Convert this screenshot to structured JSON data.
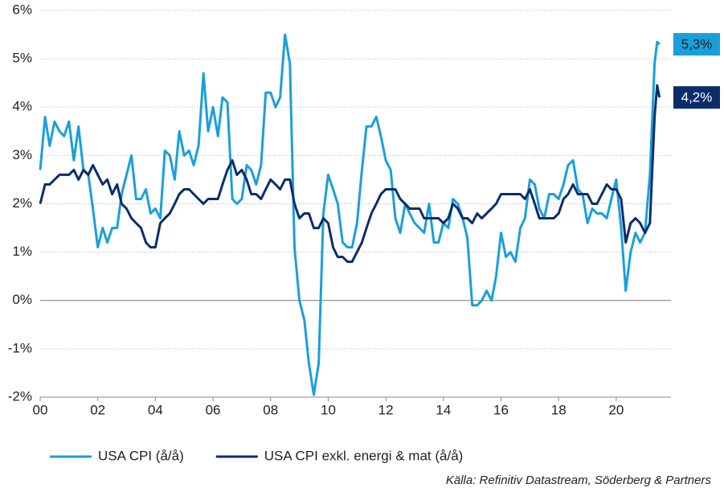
{
  "chart_data": {
    "type": "line",
    "x": [
      2000,
      2000.17,
      2000.33,
      2000.5,
      2000.67,
      2000.83,
      2001,
      2001.17,
      2001.33,
      2001.5,
      2001.67,
      2001.83,
      2002,
      2002.17,
      2002.33,
      2002.5,
      2002.67,
      2002.83,
      2003,
      2003.17,
      2003.33,
      2003.5,
      2003.67,
      2003.83,
      2004,
      2004.17,
      2004.33,
      2004.5,
      2004.67,
      2004.83,
      2005,
      2005.17,
      2005.33,
      2005.5,
      2005.67,
      2005.83,
      2006,
      2006.17,
      2006.33,
      2006.5,
      2006.67,
      2006.83,
      2007,
      2007.17,
      2007.33,
      2007.5,
      2007.67,
      2007.83,
      2008,
      2008.17,
      2008.33,
      2008.5,
      2008.67,
      2008.83,
      2009,
      2009.17,
      2009.33,
      2009.5,
      2009.67,
      2009.83,
      2010,
      2010.17,
      2010.33,
      2010.5,
      2010.67,
      2010.83,
      2011,
      2011.17,
      2011.33,
      2011.5,
      2011.67,
      2011.83,
      2012,
      2012.17,
      2012.33,
      2012.5,
      2012.67,
      2012.83,
      2013,
      2013.17,
      2013.33,
      2013.5,
      2013.67,
      2013.83,
      2014,
      2014.17,
      2014.33,
      2014.5,
      2014.67,
      2014.83,
      2015,
      2015.17,
      2015.33,
      2015.5,
      2015.67,
      2015.83,
      2016,
      2016.17,
      2016.33,
      2016.5,
      2016.67,
      2016.83,
      2017,
      2017.17,
      2017.33,
      2017.5,
      2017.67,
      2017.83,
      2018,
      2018.17,
      2018.33,
      2018.5,
      2018.67,
      2018.83,
      2019,
      2019.17,
      2019.33,
      2019.5,
      2019.67,
      2019.83,
      2020,
      2020.17,
      2020.33,
      2020.5,
      2020.67,
      2020.83,
      2021,
      2021.17,
      2021.33,
      2021.42,
      2021.5
    ],
    "series": [
      {
        "name": "USA CPI (å/å)",
        "color": "#1a9fdb",
        "end_label": "5,3%",
        "values": [
          2.7,
          3.8,
          3.2,
          3.7,
          3.5,
          3.4,
          3.7,
          2.9,
          3.6,
          2.7,
          2.6,
          1.9,
          1.1,
          1.5,
          1.2,
          1.5,
          1.5,
          2.2,
          2.6,
          3.0,
          2.1,
          2.1,
          2.3,
          1.8,
          1.9,
          1.7,
          3.1,
          3.0,
          2.5,
          3.5,
          3.0,
          3.1,
          2.8,
          3.2,
          4.7,
          3.5,
          4.0,
          3.4,
          4.2,
          4.1,
          2.1,
          2.0,
          2.1,
          2.8,
          2.7,
          2.4,
          2.8,
          4.3,
          4.3,
          4.0,
          4.2,
          5.5,
          4.9,
          1.1,
          0.0,
          -0.4,
          -1.3,
          -1.95,
          -1.3,
          1.8,
          2.6,
          2.3,
          2.0,
          1.2,
          1.1,
          1.1,
          1.6,
          2.7,
          3.6,
          3.6,
          3.8,
          3.4,
          2.9,
          2.7,
          1.7,
          1.4,
          2.0,
          1.8,
          1.6,
          1.5,
          1.4,
          2.0,
          1.2,
          1.2,
          1.6,
          1.5,
          2.1,
          2.0,
          1.7,
          1.3,
          -0.1,
          -0.1,
          0.0,
          0.2,
          0.0,
          0.5,
          1.4,
          0.9,
          1.0,
          0.8,
          1.5,
          1.7,
          2.5,
          2.4,
          1.9,
          1.7,
          2.2,
          2.2,
          2.1,
          2.4,
          2.8,
          2.9,
          2.3,
          2.2,
          1.6,
          1.9,
          1.8,
          1.8,
          1.7,
          2.1,
          2.5,
          1.5,
          0.2,
          1.0,
          1.4,
          1.2,
          1.4,
          2.6,
          4.9,
          5.35,
          5.3
        ]
      },
      {
        "name": "USA CPI exkl. energi & mat (å/å)",
        "color": "#0b2d6b",
        "end_label": "4,2%",
        "values": [
          2.0,
          2.4,
          2.4,
          2.5,
          2.6,
          2.6,
          2.6,
          2.7,
          2.5,
          2.7,
          2.6,
          2.8,
          2.6,
          2.4,
          2.5,
          2.2,
          2.4,
          2.0,
          1.9,
          1.7,
          1.6,
          1.5,
          1.2,
          1.1,
          1.1,
          1.6,
          1.7,
          1.8,
          2.0,
          2.2,
          2.3,
          2.3,
          2.2,
          2.1,
          2.0,
          2.1,
          2.1,
          2.1,
          2.4,
          2.7,
          2.9,
          2.6,
          2.7,
          2.5,
          2.2,
          2.2,
          2.1,
          2.3,
          2.5,
          2.4,
          2.3,
          2.5,
          2.5,
          2.0,
          1.7,
          1.8,
          1.8,
          1.5,
          1.5,
          1.7,
          1.6,
          1.1,
          0.9,
          0.9,
          0.8,
          0.8,
          1.0,
          1.2,
          1.5,
          1.8,
          2.0,
          2.2,
          2.3,
          2.3,
          2.3,
          2.1,
          2.0,
          1.9,
          1.9,
          1.9,
          1.7,
          1.7,
          1.7,
          1.7,
          1.6,
          1.7,
          2.0,
          1.9,
          1.7,
          1.7,
          1.6,
          1.8,
          1.7,
          1.8,
          1.9,
          2.0,
          2.2,
          2.2,
          2.2,
          2.2,
          2.2,
          2.1,
          2.3,
          2.0,
          1.7,
          1.7,
          1.7,
          1.7,
          1.8,
          2.1,
          2.2,
          2.4,
          2.2,
          2.2,
          2.2,
          2.0,
          2.0,
          2.2,
          2.4,
          2.3,
          2.3,
          2.1,
          1.2,
          1.6,
          1.7,
          1.6,
          1.4,
          1.6,
          3.8,
          4.45,
          4.2
        ]
      }
    ],
    "xlim": [
      2000,
      2021.9
    ],
    "xticks": [
      {
        "value": 2000,
        "label": "00"
      },
      {
        "value": 2002,
        "label": "02"
      },
      {
        "value": 2004,
        "label": "04"
      },
      {
        "value": 2006,
        "label": "06"
      },
      {
        "value": 2008,
        "label": "08"
      },
      {
        "value": 2010,
        "label": "10"
      },
      {
        "value": 2012,
        "label": "12"
      },
      {
        "value": 2014,
        "label": "14"
      },
      {
        "value": 2016,
        "label": "16"
      },
      {
        "value": 2018,
        "label": "18"
      },
      {
        "value": 2020,
        "label": "20"
      }
    ],
    "ylim": [
      -2,
      6
    ],
    "yticks": [
      {
        "value": -2,
        "label": "-2%"
      },
      {
        "value": -1,
        "label": "-1%"
      },
      {
        "value": 0,
        "label": "0%"
      },
      {
        "value": 1,
        "label": "1%"
      },
      {
        "value": 2,
        "label": "2%"
      },
      {
        "value": 3,
        "label": "3%"
      },
      {
        "value": 4,
        "label": "4%"
      },
      {
        "value": 5,
        "label": "5%"
      },
      {
        "value": 6,
        "label": "6%"
      }
    ],
    "grid": true,
    "source": "Källa: Refinitiv Datastream, Söderberg & Partners"
  }
}
